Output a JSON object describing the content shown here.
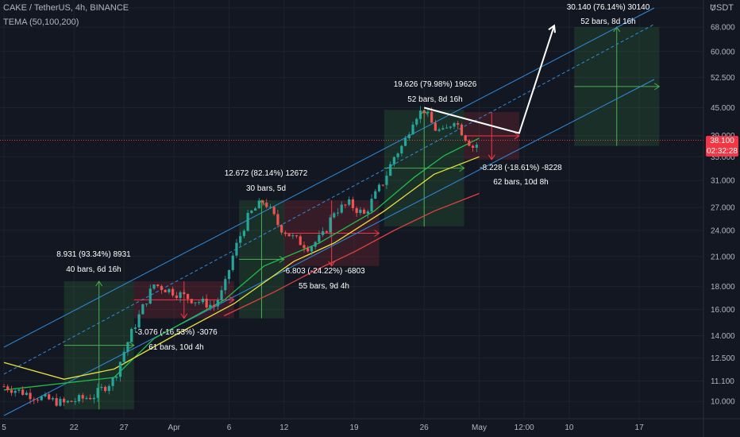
{
  "header": {
    "symbol_line": "CAKE / TetherUS, 4h, BINANCE",
    "indicator_line": "TEMA (50,100,200)",
    "currency": "USDT"
  },
  "price_tag": {
    "price": "38.100",
    "countdown": "02:32:28"
  },
  "chart_data": {
    "type": "candlestick",
    "title": "CAKE / TetherUS, 4h, BINANCE",
    "indicator": "TEMA (50,100,200)",
    "scale": "log",
    "ylim": [
      9.3,
      75
    ],
    "y_ticks": [
      "10.000",
      "11.100",
      "12.500",
      "14.000",
      "16.000",
      "18.000",
      "21.000",
      "24.000",
      "27.000",
      "31.000",
      "35.000",
      "39.000",
      "45.000",
      "52.500",
      "60.000",
      "68.000",
      "7"
    ],
    "x_ticks": [
      "5",
      "22",
      "27",
      "Apr",
      "6",
      "12",
      "19",
      "26",
      "May",
      "12:00",
      "10",
      "17"
    ],
    "close_path": [
      [
        0,
        10.8
      ],
      [
        7,
        10.2
      ],
      [
        12,
        9.9
      ],
      [
        18,
        10.3
      ],
      [
        22,
        11.2
      ],
      [
        27,
        15.5
      ],
      [
        30,
        18.2
      ],
      [
        34,
        17.5
      ],
      [
        38,
        16.8
      ],
      [
        42,
        16.3
      ],
      [
        44,
        17.8
      ],
      [
        46,
        21.5
      ],
      [
        49,
        26.0
      ],
      [
        52,
        28.0
      ],
      [
        55,
        24.5
      ],
      [
        58,
        23.0
      ],
      [
        61,
        22.0
      ],
      [
        64,
        23.5
      ],
      [
        66,
        26.5
      ],
      [
        69,
        27.5
      ],
      [
        72,
        26.0
      ],
      [
        74,
        28.5
      ],
      [
        76,
        31.0
      ],
      [
        78,
        35.0
      ],
      [
        80,
        37.5
      ],
      [
        82,
        43.0
      ],
      [
        84,
        44.5
      ],
      [
        86,
        40.5
      ],
      [
        88,
        39.5
      ],
      [
        90,
        42.5
      ],
      [
        92,
        39.0
      ],
      [
        94,
        36.5
      ],
      [
        95,
        38.1
      ]
    ],
    "series": [
      {
        "name": "TEMA 50",
        "color": "#1fbf4a",
        "points": [
          [
            0,
            10.6
          ],
          [
            22,
            11.3
          ],
          [
            30,
            13.8
          ],
          [
            44,
            16.8
          ],
          [
            52,
            20.0
          ],
          [
            63,
            22.5
          ],
          [
            74,
            26.5
          ],
          [
            82,
            31.5
          ],
          [
            88,
            35.2
          ],
          [
            95,
            38.5
          ]
        ]
      },
      {
        "name": "TEMA 100",
        "color": "#e8e23a",
        "points": [
          [
            0,
            12.2
          ],
          [
            12,
            11.2
          ],
          [
            22,
            11.8
          ],
          [
            34,
            14.0
          ],
          [
            46,
            16.5
          ],
          [
            58,
            20.5
          ],
          [
            66,
            22.5
          ],
          [
            76,
            26.5
          ],
          [
            86,
            32.0
          ],
          [
            95,
            35.0
          ]
        ]
      },
      {
        "name": "TEMA 200",
        "color": "#e0413f",
        "points": [
          [
            44,
            15.5
          ],
          [
            54,
            17.5
          ],
          [
            62,
            19.5
          ],
          [
            70,
            21.5
          ],
          [
            78,
            24.0
          ],
          [
            86,
            26.5
          ],
          [
            95,
            29.0
          ]
        ]
      }
    ],
    "annotations": [
      {
        "line1": "8.931 (93.34%) 8931",
        "line2": "40 bars, 6d 16h",
        "dir": "up"
      },
      {
        "line1": "-3.076 (-16.53%) -3076",
        "line2": "61 bars, 10d 4h",
        "dir": "down"
      },
      {
        "line1": "12.672 (82.14%) 12672",
        "line2": "30 bars, 5d",
        "dir": "up"
      },
      {
        "line1": "-6.803 (-24.22%) -6803",
        "line2": "55 bars, 9d 4h",
        "dir": "down"
      },
      {
        "line1": "19.626 (79.98%) 19626",
        "line2": "52 bars, 8d 16h",
        "dir": "up"
      },
      {
        "line1": "-8.228 (-18.61%) -8228",
        "line2": "62 bars, 10d 8h",
        "dir": "down"
      },
      {
        "line1": "30.140 (76.14%) 30140",
        "line2": "52 bars, 8d 16h",
        "dir": "up"
      }
    ],
    "projection": [
      [
        84,
        45.0
      ],
      [
        103,
        39.5
      ],
      [
        110,
        68.5
      ]
    ],
    "channel": {
      "upper": [
        [
          0,
          13.2
        ],
        [
          130,
          75.0
        ]
      ],
      "mid": [
        [
          0,
          11.5
        ],
        [
          130,
          69.0
        ]
      ],
      "lower": [
        [
          0,
          9.3
        ],
        [
          130,
          52.0
        ]
      ]
    }
  }
}
